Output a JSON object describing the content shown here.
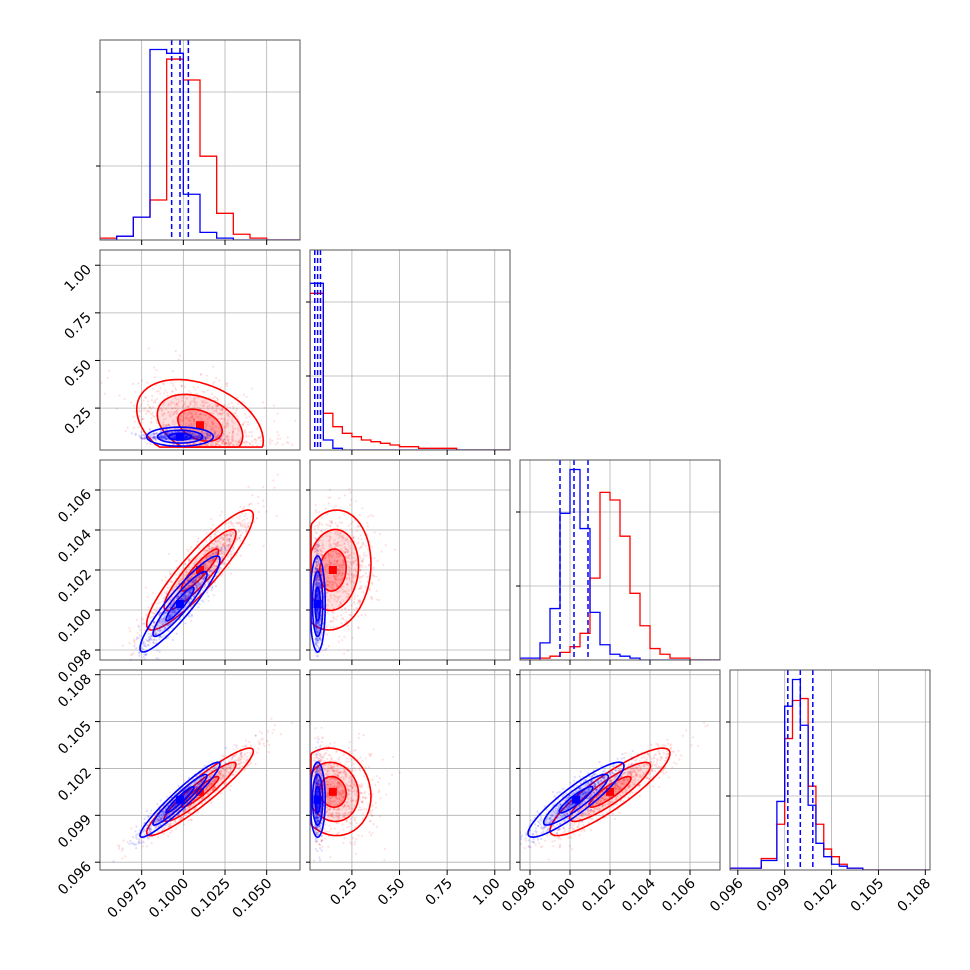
{
  "colors": {
    "series_a": "#0000ff",
    "series_b": "#ff0000",
    "grid": "#b0b0b0",
    "frame": "#555555"
  },
  "chart_data": {
    "type": "corner",
    "grid": true,
    "series": [
      {
        "color": "blue"
      },
      {
        "color": "red"
      }
    ],
    "parameters": [
      {
        "range": [
          0.095,
          0.107
        ],
        "ticks": [
          0.0975,
          0.1,
          0.1025,
          0.105
        ],
        "tick_labels": [
          "0.0975",
          "0.1000",
          "0.1025",
          "0.1050"
        ],
        "quantile_lines": [
          0.0993,
          0.0998,
          0.1003
        ],
        "hist_bins": [
          0.095,
          0.096,
          0.097,
          0.098,
          0.099,
          0.1,
          0.101,
          0.102,
          0.103,
          0.104,
          0.105,
          0.106,
          0.107
        ],
        "hist_a": [
          0,
          0.02,
          0.12,
          1.0,
          0.98,
          0.24,
          0.04,
          0.01,
          0,
          0,
          0,
          0
        ],
        "hist_b": [
          0.01,
          0.02,
          0.12,
          0.21,
          0.95,
          0.84,
          0.44,
          0.14,
          0.03,
          0.01,
          0,
          0
        ]
      },
      {
        "range": [
          0.03,
          1.08
        ],
        "ticks": [
          0.25,
          0.5,
          0.75,
          1.0
        ],
        "tick_labels": [
          "0.25",
          "0.50",
          "0.75",
          "1.00"
        ],
        "quantile_lines": [
          0.055,
          0.07,
          0.085
        ],
        "hist_bins": [
          0.03,
          0.1,
          0.15,
          0.2,
          0.25,
          0.3,
          0.35,
          0.4,
          0.45,
          0.5,
          0.6,
          0.8,
          1.08
        ],
        "hist_a": [
          1.0,
          0.06,
          0.01,
          0,
          0,
          0,
          0,
          0,
          0,
          0,
          0,
          0
        ],
        "hist_b": [
          0.94,
          0.22,
          0.14,
          0.1,
          0.08,
          0.06,
          0.05,
          0.04,
          0.03,
          0.02,
          0.01,
          0
        ],
        "hist_ylim": [
          0,
          1.2
        ]
      },
      {
        "range": [
          0.0975,
          0.1075
        ],
        "ticks": [
          0.098,
          0.1,
          0.102,
          0.104,
          0.106
        ],
        "tick_labels": [
          "0.098",
          "0.100",
          "0.102",
          "0.104",
          "0.106"
        ],
        "quantile_lines": [
          0.0995,
          0.1002,
          0.1009
        ],
        "hist_bins": [
          0.0975,
          0.0985,
          0.099,
          0.0995,
          0.1,
          0.1005,
          0.101,
          0.1015,
          0.102,
          0.1025,
          0.103,
          0.1035,
          0.104,
          0.1045,
          0.105,
          0.106,
          0.1075
        ],
        "hist_a": [
          0.01,
          0.09,
          0.27,
          0.77,
          1.0,
          0.69,
          0.25,
          0.08,
          0.03,
          0.02,
          0.01,
          0,
          0,
          0,
          0,
          0
        ],
        "hist_b": [
          0,
          0.01,
          0.02,
          0.04,
          0.07,
          0.14,
          0.43,
          0.88,
          0.84,
          0.65,
          0.35,
          0.18,
          0.06,
          0.03,
          0.01,
          0
        ]
      },
      {
        "range": [
          0.0955,
          0.1083
        ],
        "ticks": [
          0.096,
          0.099,
          0.102,
          0.105,
          0.108
        ],
        "tick_labels": [
          "0.096",
          "0.099",
          "0.102",
          "0.105",
          "0.108"
        ],
        "quantile_lines": [
          0.0992,
          0.1,
          0.1008
        ],
        "hist_bins": [
          0.0955,
          0.0975,
          0.0985,
          0.099,
          0.0995,
          0.1,
          0.1005,
          0.101,
          0.1015,
          0.102,
          0.1025,
          0.103,
          0.104,
          0.1055,
          0.1083
        ],
        "hist_a": [
          0.01,
          0.05,
          0.36,
          0.86,
          1.0,
          0.76,
          0.34,
          0.14,
          0.07,
          0.03,
          0.02,
          0.01,
          0,
          0
        ],
        "hist_b": [
          0.01,
          0.06,
          0.24,
          0.69,
          0.89,
          0.9,
          0.44,
          0.24,
          0.11,
          0.07,
          0.03,
          0.01,
          0,
          0
        ]
      }
    ],
    "pairs": [
      {
        "x": 0,
        "y": 1,
        "a": {
          "cx": 0.0998,
          "cy": 0.1,
          "sx": 0.001,
          "sy": 0.025,
          "rho": 0.0,
          "q": 0.15
        },
        "b": {
          "cx": 0.101,
          "cy": 0.16,
          "sx": 0.0019,
          "sy": 0.12,
          "rho": -0.35,
          "q": 0.0
        }
      },
      {
        "x": 0,
        "y": 2,
        "a": {
          "cx": 0.0998,
          "cy": 0.1003,
          "sx": 0.0012,
          "sy": 0.0012,
          "rho": 0.92,
          "q": 0
        },
        "b": {
          "cx": 0.101,
          "cy": 0.102,
          "sx": 0.0016,
          "sy": 0.0015,
          "rho": 0.9,
          "q": 0
        }
      },
      {
        "x": 1,
        "y": 2,
        "a": {
          "cx": 0.07,
          "cy": 0.1003,
          "sx": 0.02,
          "sy": 0.0012,
          "rho": 0.0,
          "q": 0.15
        },
        "b": {
          "cx": 0.15,
          "cy": 0.102,
          "sx": 0.1,
          "sy": 0.0015,
          "rho": 0.1,
          "q": 0.0
        }
      },
      {
        "x": 0,
        "y": 3,
        "a": {
          "cx": 0.0998,
          "cy": 0.1,
          "sx": 0.0012,
          "sy": 0.0012,
          "rho": 0.95,
          "q": 0
        },
        "b": {
          "cx": 0.101,
          "cy": 0.1005,
          "sx": 0.0016,
          "sy": 0.0014,
          "rho": 0.93,
          "q": 0
        }
      },
      {
        "x": 1,
        "y": 3,
        "a": {
          "cx": 0.07,
          "cy": 0.1,
          "sx": 0.02,
          "sy": 0.0012,
          "rho": 0.0,
          "q": 0.15
        },
        "b": {
          "cx": 0.15,
          "cy": 0.1005,
          "sx": 0.1,
          "sy": 0.0014,
          "rho": -0.1,
          "q": 0.0
        }
      },
      {
        "x": 2,
        "y": 3,
        "a": {
          "cx": 0.1003,
          "cy": 0.1,
          "sx": 0.0012,
          "sy": 0.0012,
          "rho": 0.9,
          "q": 0
        },
        "b": {
          "cx": 0.102,
          "cy": 0.1005,
          "sx": 0.0015,
          "sy": 0.0014,
          "rho": 0.88,
          "q": 0
        }
      }
    ]
  }
}
